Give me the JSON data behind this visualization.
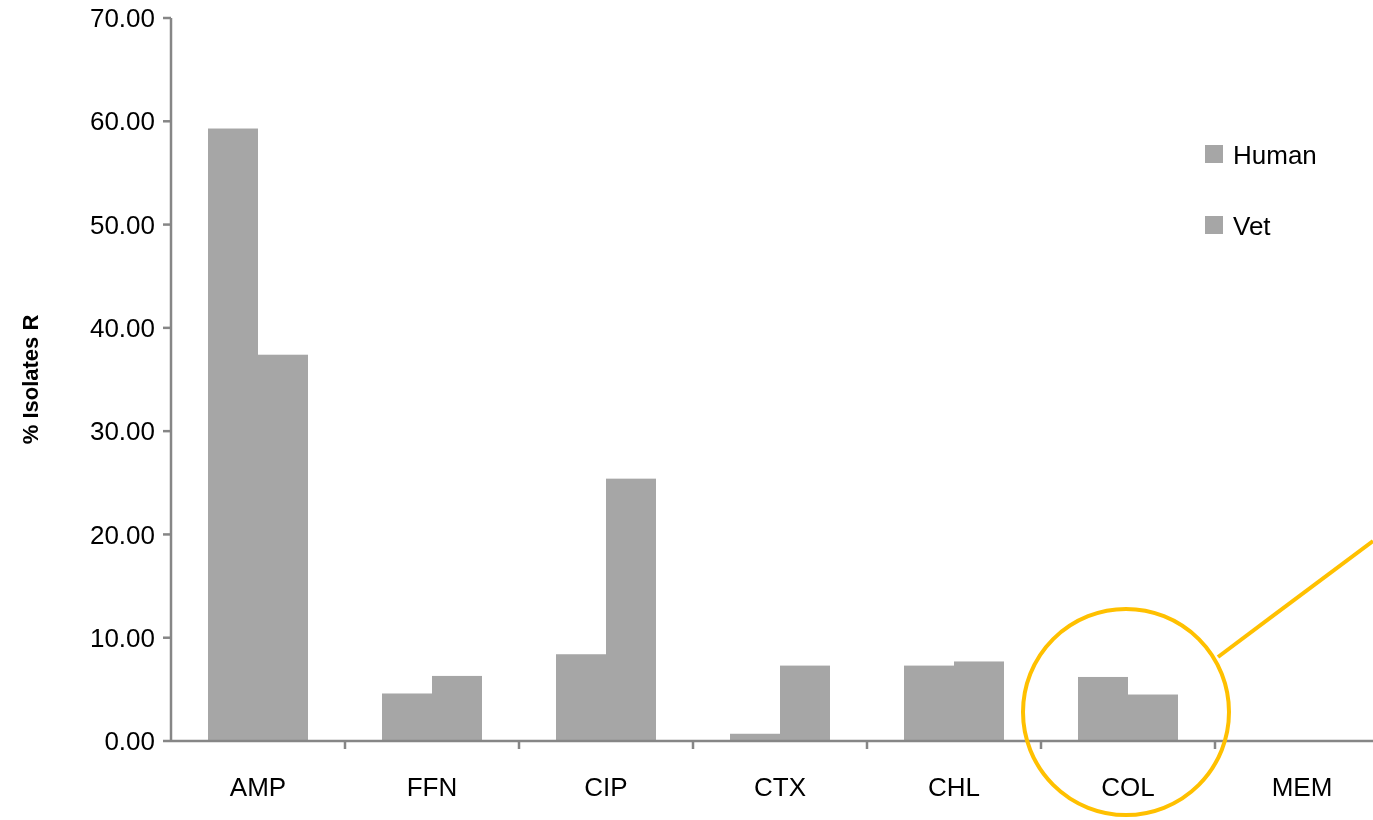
{
  "chart_data": {
    "type": "bar",
    "ylabel": "% Isolates R",
    "categories": [
      "AMP",
      "FFN",
      "CIP",
      "CTX",
      "CHL",
      "COL",
      "MEM"
    ],
    "series": [
      {
        "name": "Human",
        "color": "#a6a6a6",
        "values": [
          59.3,
          4.6,
          8.4,
          0.7,
          7.3,
          6.2,
          0
        ]
      },
      {
        "name": "Vet",
        "color": "#a6a6a6",
        "values": [
          37.4,
          6.3,
          25.4,
          7.3,
          7.7,
          4.5,
          0
        ]
      }
    ],
    "ylim": [
      0,
      70
    ],
    "yticks": [
      {
        "value": 0,
        "label": "0.00"
      },
      {
        "value": 10,
        "label": "10.00"
      },
      {
        "value": 20,
        "label": "20.00"
      },
      {
        "value": 30,
        "label": "30.00"
      },
      {
        "value": 40,
        "label": "40.00"
      },
      {
        "value": 50,
        "label": "50.00"
      },
      {
        "value": 60,
        "label": "60.00"
      },
      {
        "value": 70,
        "label": "70.00"
      }
    ],
    "legend": "top right",
    "grid": false
  }
}
